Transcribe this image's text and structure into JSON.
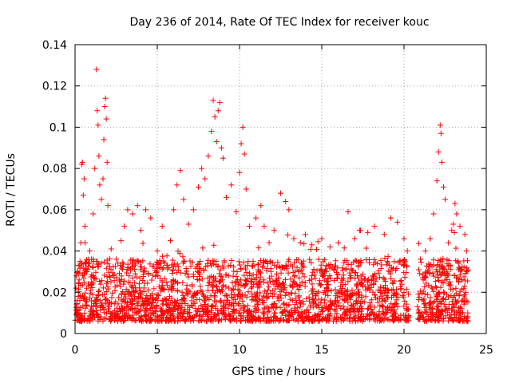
{
  "chart_data": {
    "type": "scatter",
    "title": "Day 236 of 2014, Rate Of TEC Index for receiver kouc",
    "xlabel": "GPS time / hours",
    "ylabel": "ROTI / TECUs",
    "xlim": [
      0,
      25
    ],
    "ylim": [
      0,
      0.14
    ],
    "x_ticks": [
      0,
      5,
      10,
      15,
      20,
      25
    ],
    "x_tick_labels": [
      "0",
      "5",
      "10",
      "15",
      "20",
      "25"
    ],
    "y_ticks": [
      0,
      0.02,
      0.04,
      0.06,
      0.08,
      0.1,
      0.12,
      0.14
    ],
    "y_tick_labels": [
      "0",
      "0.02",
      "0.04",
      "0.06",
      "0.08",
      "0.1",
      "0.12",
      "0.14"
    ],
    "grid": true,
    "marker": "plus",
    "color": "#ff0000",
    "data_gaps_hours": [
      [
        20.3,
        20.8
      ],
      [
        23.9,
        25
      ]
    ],
    "series": [
      {
        "name": "ROTI",
        "points": [
          [
            0.05,
            0.022
          ],
          [
            0.1,
            0.014
          ],
          [
            0.15,
            0.03
          ],
          [
            0.2,
            0.018
          ],
          [
            0.25,
            0.026
          ],
          [
            0.3,
            0.035
          ],
          [
            0.35,
            0.044
          ],
          [
            0.4,
            0.082
          ],
          [
            0.45,
            0.083
          ],
          [
            0.5,
            0.067
          ],
          [
            0.55,
            0.075
          ],
          [
            0.6,
            0.052
          ],
          [
            0.7,
            0.03
          ],
          [
            0.8,
            0.024
          ],
          [
            0.9,
            0.04
          ],
          [
            1.0,
            0.036
          ],
          [
            1.1,
            0.058
          ],
          [
            1.2,
            0.08
          ],
          [
            1.3,
            0.128
          ],
          [
            1.35,
            0.108
          ],
          [
            1.4,
            0.101
          ],
          [
            1.45,
            0.086
          ],
          [
            1.5,
            0.072
          ],
          [
            1.6,
            0.065
          ],
          [
            1.7,
            0.075
          ],
          [
            1.75,
            0.094
          ],
          [
            1.8,
            0.11
          ],
          [
            1.85,
            0.114
          ],
          [
            1.9,
            0.104
          ],
          [
            1.95,
            0.083
          ],
          [
            2.0,
            0.062
          ],
          [
            2.2,
            0.041
          ],
          [
            2.5,
            0.036
          ],
          [
            2.8,
            0.045
          ],
          [
            3.0,
            0.052
          ],
          [
            3.2,
            0.06
          ],
          [
            3.5,
            0.058
          ],
          [
            3.8,
            0.062
          ],
          [
            4.0,
            0.05
          ],
          [
            4.3,
            0.06
          ],
          [
            4.6,
            0.056
          ],
          [
            5.0,
            0.04
          ],
          [
            5.3,
            0.052
          ],
          [
            5.8,
            0.045
          ],
          [
            6.0,
            0.06
          ],
          [
            6.2,
            0.072
          ],
          [
            6.4,
            0.079
          ],
          [
            6.6,
            0.065
          ],
          [
            6.9,
            0.053
          ],
          [
            7.2,
            0.06
          ],
          [
            7.5,
            0.071
          ],
          [
            7.7,
            0.08
          ],
          [
            7.9,
            0.075
          ],
          [
            8.1,
            0.086
          ],
          [
            8.3,
            0.098
          ],
          [
            8.4,
            0.113
          ],
          [
            8.5,
            0.105
          ],
          [
            8.6,
            0.093
          ],
          [
            8.7,
            0.108
          ],
          [
            8.8,
            0.112
          ],
          [
            8.9,
            0.09
          ],
          [
            9.0,
            0.085
          ],
          [
            9.2,
            0.066
          ],
          [
            9.5,
            0.072
          ],
          [
            9.8,
            0.059
          ],
          [
            10.0,
            0.078
          ],
          [
            10.1,
            0.092
          ],
          [
            10.2,
            0.1
          ],
          [
            10.3,
            0.087
          ],
          [
            10.4,
            0.07
          ],
          [
            10.6,
            0.052
          ],
          [
            11.0,
            0.056
          ],
          [
            11.3,
            0.062
          ],
          [
            11.5,
            0.052
          ],
          [
            11.8,
            0.044
          ],
          [
            12.1,
            0.05
          ],
          [
            12.5,
            0.068
          ],
          [
            12.8,
            0.064
          ],
          [
            13.0,
            0.06
          ],
          [
            13.3,
            0.046
          ],
          [
            13.7,
            0.044
          ],
          [
            14.0,
            0.048
          ],
          [
            14.4,
            0.043
          ],
          [
            15.0,
            0.046
          ],
          [
            15.5,
            0.042
          ],
          [
            16.0,
            0.044
          ],
          [
            16.6,
            0.059
          ],
          [
            17.0,
            0.046
          ],
          [
            17.3,
            0.05
          ],
          [
            17.8,
            0.049
          ],
          [
            18.2,
            0.052
          ],
          [
            18.8,
            0.048
          ],
          [
            19.2,
            0.056
          ],
          [
            19.6,
            0.054
          ],
          [
            20.0,
            0.046
          ],
          [
            20.2,
            0.04
          ],
          [
            21.0,
            0.036
          ],
          [
            21.3,
            0.04
          ],
          [
            21.6,
            0.046
          ],
          [
            21.8,
            0.058
          ],
          [
            22.0,
            0.074
          ],
          [
            22.1,
            0.088
          ],
          [
            22.2,
            0.101
          ],
          [
            22.25,
            0.097
          ],
          [
            22.3,
            0.083
          ],
          [
            22.4,
            0.071
          ],
          [
            22.5,
            0.065
          ],
          [
            22.7,
            0.044
          ],
          [
            22.9,
            0.05
          ],
          [
            23.0,
            0.053
          ],
          [
            23.1,
            0.063
          ],
          [
            23.2,
            0.058
          ],
          [
            23.4,
            0.052
          ],
          [
            23.7,
            0.048
          ],
          [
            23.8,
            0.04
          ]
        ]
      }
    ]
  }
}
